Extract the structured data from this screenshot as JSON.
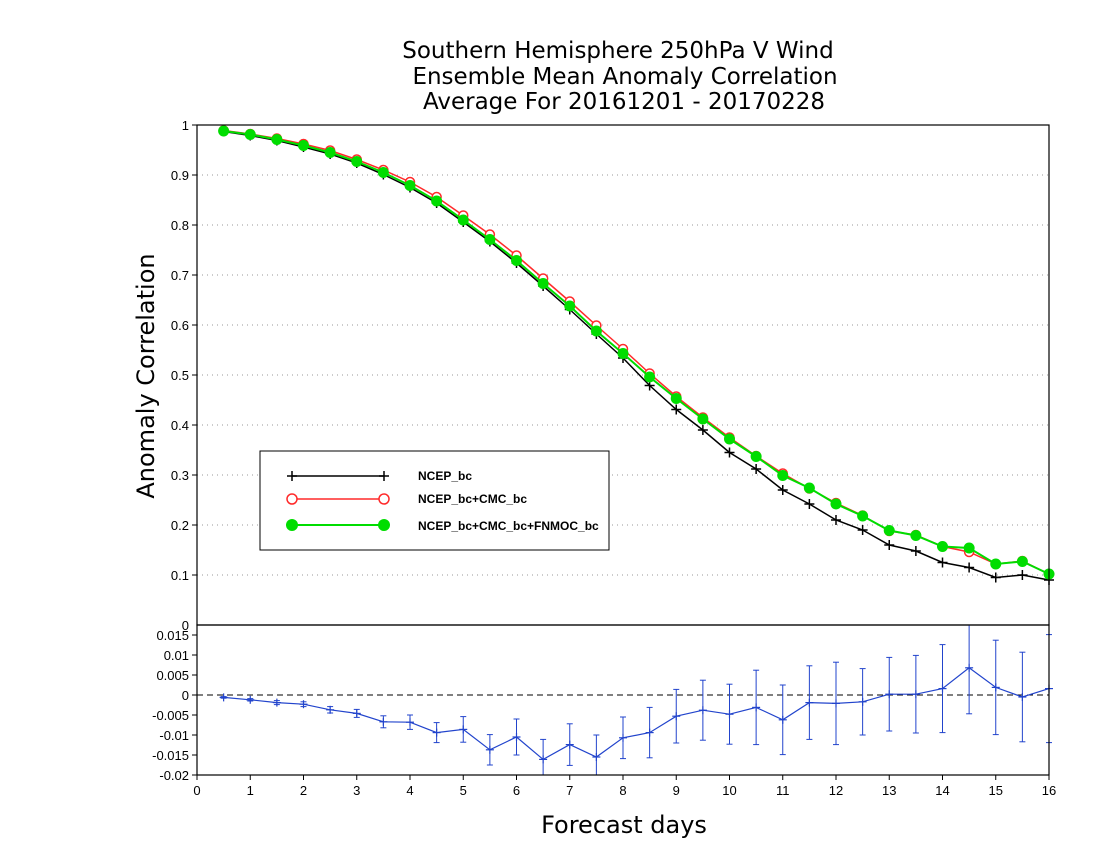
{
  "chart_data": [
    {
      "type": "line",
      "title": [
        "Southern Hemisphere 250hPa V Wind",
        "Ensemble Mean Anomaly Correlation",
        "Average For 20161201 - 20170228"
      ],
      "xlabel": "Forecast days",
      "ylabel": "Anomaly Correlation",
      "xlim": [
        0,
        16
      ],
      "ylim": [
        0,
        1
      ],
      "xticks": [
        "0",
        "1",
        "2",
        "3",
        "4",
        "5",
        "6",
        "7",
        "8",
        "9",
        "10",
        "11",
        "12",
        "13",
        "14",
        "15",
        "16"
      ],
      "yticks": [
        "0.1",
        "0.2",
        "0.3",
        "0.4",
        "0.5",
        "0.6",
        "0.7",
        "0.8",
        "0.9",
        "1"
      ],
      "grid": "horizontal dotted",
      "legend_position": "left-middle",
      "x": [
        0.5,
        1,
        1.5,
        2,
        2.5,
        3,
        3.5,
        4,
        4.5,
        5,
        5.5,
        6,
        6.5,
        7,
        7.5,
        8,
        8.5,
        9,
        9.5,
        10,
        10.5,
        11,
        11.5,
        12,
        12.5,
        13,
        13.5,
        14,
        14.5,
        15,
        15.5,
        16
      ],
      "series": [
        {
          "name": "NCEP_bc",
          "color": "#000000",
          "marker": "plus",
          "values": [
            0.987,
            0.979,
            0.969,
            0.956,
            0.942,
            0.924,
            0.901,
            0.875,
            0.844,
            0.806,
            0.767,
            0.724,
            0.678,
            0.631,
            0.582,
            0.534,
            0.479,
            0.431,
            0.39,
            0.345,
            0.312,
            0.27,
            0.242,
            0.21,
            0.19,
            0.16,
            0.148,
            0.125,
            0.115,
            0.095,
            0.1,
            0.09
          ]
        },
        {
          "name": "NCEP_bc+CMC_bc",
          "color": "#ff2a2a",
          "marker": "open-circle",
          "values": [
            0.989,
            0.982,
            0.973,
            0.962,
            0.949,
            0.931,
            0.91,
            0.886,
            0.856,
            0.819,
            0.781,
            0.739,
            0.693,
            0.647,
            0.599,
            0.552,
            0.503,
            0.457,
            0.415,
            0.375,
            0.338,
            0.303,
            0.273,
            0.244,
            0.219,
            0.188,
            0.18,
            0.157,
            0.146,
            0.122,
            0.128,
            0.102
          ]
        },
        {
          "name": "NCEP_bc+CMC_bc+FNMOC_bc",
          "color": "#00dd00",
          "marker": "filled-circle",
          "values": [
            0.988,
            0.981,
            0.971,
            0.959,
            0.945,
            0.927,
            0.905,
            0.879,
            0.848,
            0.81,
            0.771,
            0.729,
            0.683,
            0.638,
            0.588,
            0.543,
            0.496,
            0.453,
            0.412,
            0.372,
            0.337,
            0.299,
            0.274,
            0.242,
            0.218,
            0.189,
            0.179,
            0.157,
            0.154,
            0.122,
            0.127,
            0.102
          ]
        }
      ]
    },
    {
      "type": "line",
      "xlim": [
        0,
        16
      ],
      "ylim": [
        -0.02,
        0.0175
      ],
      "yticks": [
        "-0.02",
        "-0.015",
        "-0.01",
        "-0.005",
        "0",
        "0.005",
        "0.01",
        "0.015"
      ],
      "zero_line": "dashed",
      "x": [
        0.5,
        1,
        1.5,
        2,
        2.5,
        3,
        3.5,
        4,
        4.5,
        5,
        5.5,
        6,
        6.5,
        7,
        7.5,
        8,
        8.5,
        9,
        9.5,
        10,
        10.5,
        11,
        11.5,
        12,
        12.5,
        13,
        13.5,
        14,
        14.5,
        15,
        15.5,
        16
      ],
      "series": [
        {
          "name": "",
          "color": "#2244cc",
          "marker": "plus-with-errorbar",
          "values": [
            -0.0006,
            -0.0012,
            -0.0019,
            -0.0023,
            -0.0037,
            -0.0046,
            -0.0067,
            -0.0068,
            -0.0094,
            -0.0086,
            -0.0137,
            -0.0105,
            -0.0161,
            -0.0124,
            -0.0155,
            -0.0107,
            -0.0094,
            -0.0053,
            -0.0038,
            -0.0048,
            -0.0031,
            -0.0062,
            -0.0019,
            -0.0021,
            -0.0017,
            0.0002,
            0.0002,
            0.0016,
            0.0068,
            0.0019,
            -0.0005,
            0.0016
          ],
          "error": [
            0.0002,
            0.0003,
            0.0005,
            0.0006,
            0.0008,
            0.001,
            0.0015,
            0.0018,
            0.0025,
            0.0032,
            0.0038,
            0.0045,
            0.005,
            0.0052,
            0.0055,
            0.0052,
            0.0063,
            0.0067,
            0.0075,
            0.0075,
            0.0093,
            0.0087,
            0.0092,
            0.0103,
            0.0083,
            0.0092,
            0.0097,
            0.011,
            0.0115,
            0.0118,
            0.0112,
            0.0135
          ]
        }
      ]
    }
  ]
}
